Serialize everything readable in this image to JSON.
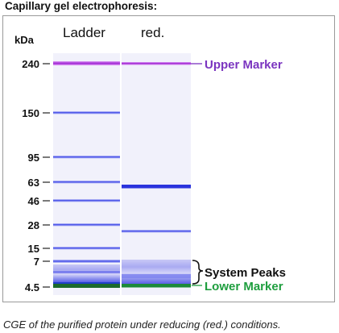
{
  "title": "Capillary gel electrophoresis:",
  "unit_label": "kDa",
  "lanes": {
    "ladder_label": "Ladder",
    "sample_label": "red."
  },
  "ticks": [
    "240",
    "150",
    "95",
    "63",
    "46",
    "28",
    "15",
    "7",
    "4.5"
  ],
  "annotations": {
    "upper_marker": {
      "text": "Upper Marker",
      "color": "#7b35c0"
    },
    "system_peaks": {
      "text": "System Peaks",
      "color": "#111111"
    },
    "lower_marker": {
      "text": "Lower Marker",
      "color": "#1e9e3e"
    }
  },
  "caption": "CGE of the purified protein under reducing (red.) conditions.",
  "colors": {
    "band": "#5a62f0",
    "upper_band": "#b02ad8",
    "lower_band": "#1c6a2c",
    "lane_background": "#f1f1fb"
  }
}
